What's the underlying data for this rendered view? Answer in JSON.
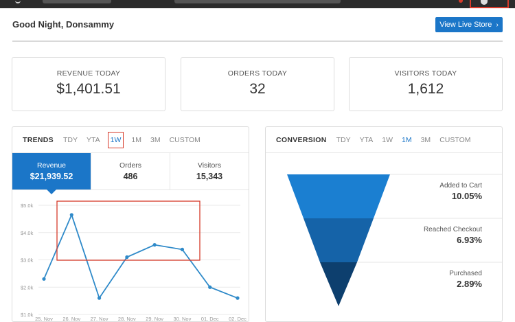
{
  "header": {
    "greeting": "Good Night, Donsammy",
    "view_store_label": "View Live Store",
    "view_store_icon": "chevron-right-icon"
  },
  "stats": [
    {
      "label": "REVENUE TODAY",
      "value": "$1,401.51"
    },
    {
      "label": "ORDERS TODAY",
      "value": "32"
    },
    {
      "label": "VISITORS TODAY",
      "value": "1,612"
    }
  ],
  "trends": {
    "title": "TRENDS",
    "ranges": [
      "TDY",
      "YTA",
      "1W",
      "1M",
      "3M",
      "CUSTOM"
    ],
    "selected_range": "1W",
    "metrics": [
      {
        "label": "Revenue",
        "value": "$21,939.52",
        "active": true
      },
      {
        "label": "Orders",
        "value": "486",
        "active": false
      },
      {
        "label": "Visitors",
        "value": "15,343",
        "active": false
      }
    ]
  },
  "chart_data": {
    "type": "line",
    "categories": [
      "25. Nov",
      "26. Nov",
      "27. Nov",
      "28. Nov",
      "29. Nov",
      "30. Nov",
      "01. Dec",
      "02. Dec"
    ],
    "values": [
      2300,
      4650,
      1600,
      3100,
      3550,
      3380,
      2000,
      1600
    ],
    "yticks": [
      "$5.0k",
      "$4.0k",
      "$3.0k",
      "$2.0k",
      "$1.0k"
    ],
    "ylim": [
      1000,
      5000
    ],
    "grid": true,
    "line_color": "#2f8ac9"
  },
  "conversion": {
    "title": "CONVERSION",
    "ranges": [
      "TDY",
      "YTA",
      "1W",
      "1M",
      "3M",
      "CUSTOM"
    ],
    "selected_range": "1M",
    "steps": [
      {
        "label": "Added to Cart",
        "value": "10.05%",
        "color": "#1b7fd1"
      },
      {
        "label": "Reached Checkout",
        "value": "6.93%",
        "color": "#1563a8"
      },
      {
        "label": "Purchased",
        "value": "2.89%",
        "color": "#0d3f6e"
      }
    ]
  }
}
